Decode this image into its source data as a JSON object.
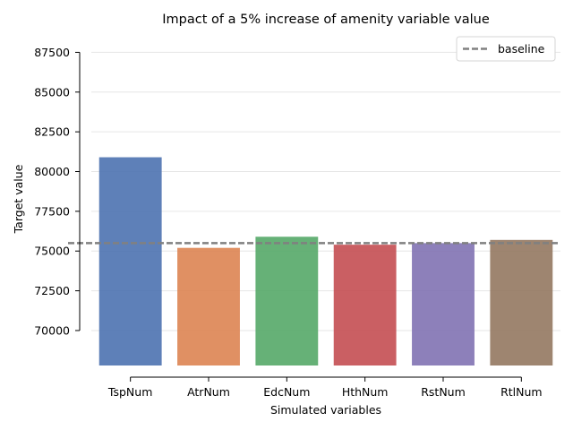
{
  "chart_data": {
    "type": "bar",
    "title": "Impact of a 5% increase of amenity variable value",
    "xlabel": "Simulated variables",
    "ylabel": "Target value",
    "categories": [
      "TspNum",
      "AtrNum",
      "EdcNum",
      "HthNum",
      "RstNum",
      "RtlNum"
    ],
    "values": [
      80900,
      75200,
      75900,
      75400,
      75500,
      75700
    ],
    "colors": [
      "#4c72b0",
      "#dd8452",
      "#55a868",
      "#c44e52",
      "#8172b3",
      "#937860"
    ],
    "bar_alpha": 0.9,
    "ylim": [
      67800,
      88200
    ],
    "yticks": [
      70000,
      72500,
      75000,
      77500,
      80000,
      82500,
      85000,
      87500
    ],
    "ytick_labels": [
      "70000",
      "72500",
      "75000",
      "77500",
      "80000",
      "82500",
      "85000",
      "87500"
    ],
    "grid": "horizontal",
    "baseline": {
      "value": 75500,
      "label": "baseline",
      "color": "#808080",
      "style": "dashed"
    },
    "legend": {
      "position": "top-right",
      "entries": [
        "baseline"
      ]
    }
  }
}
